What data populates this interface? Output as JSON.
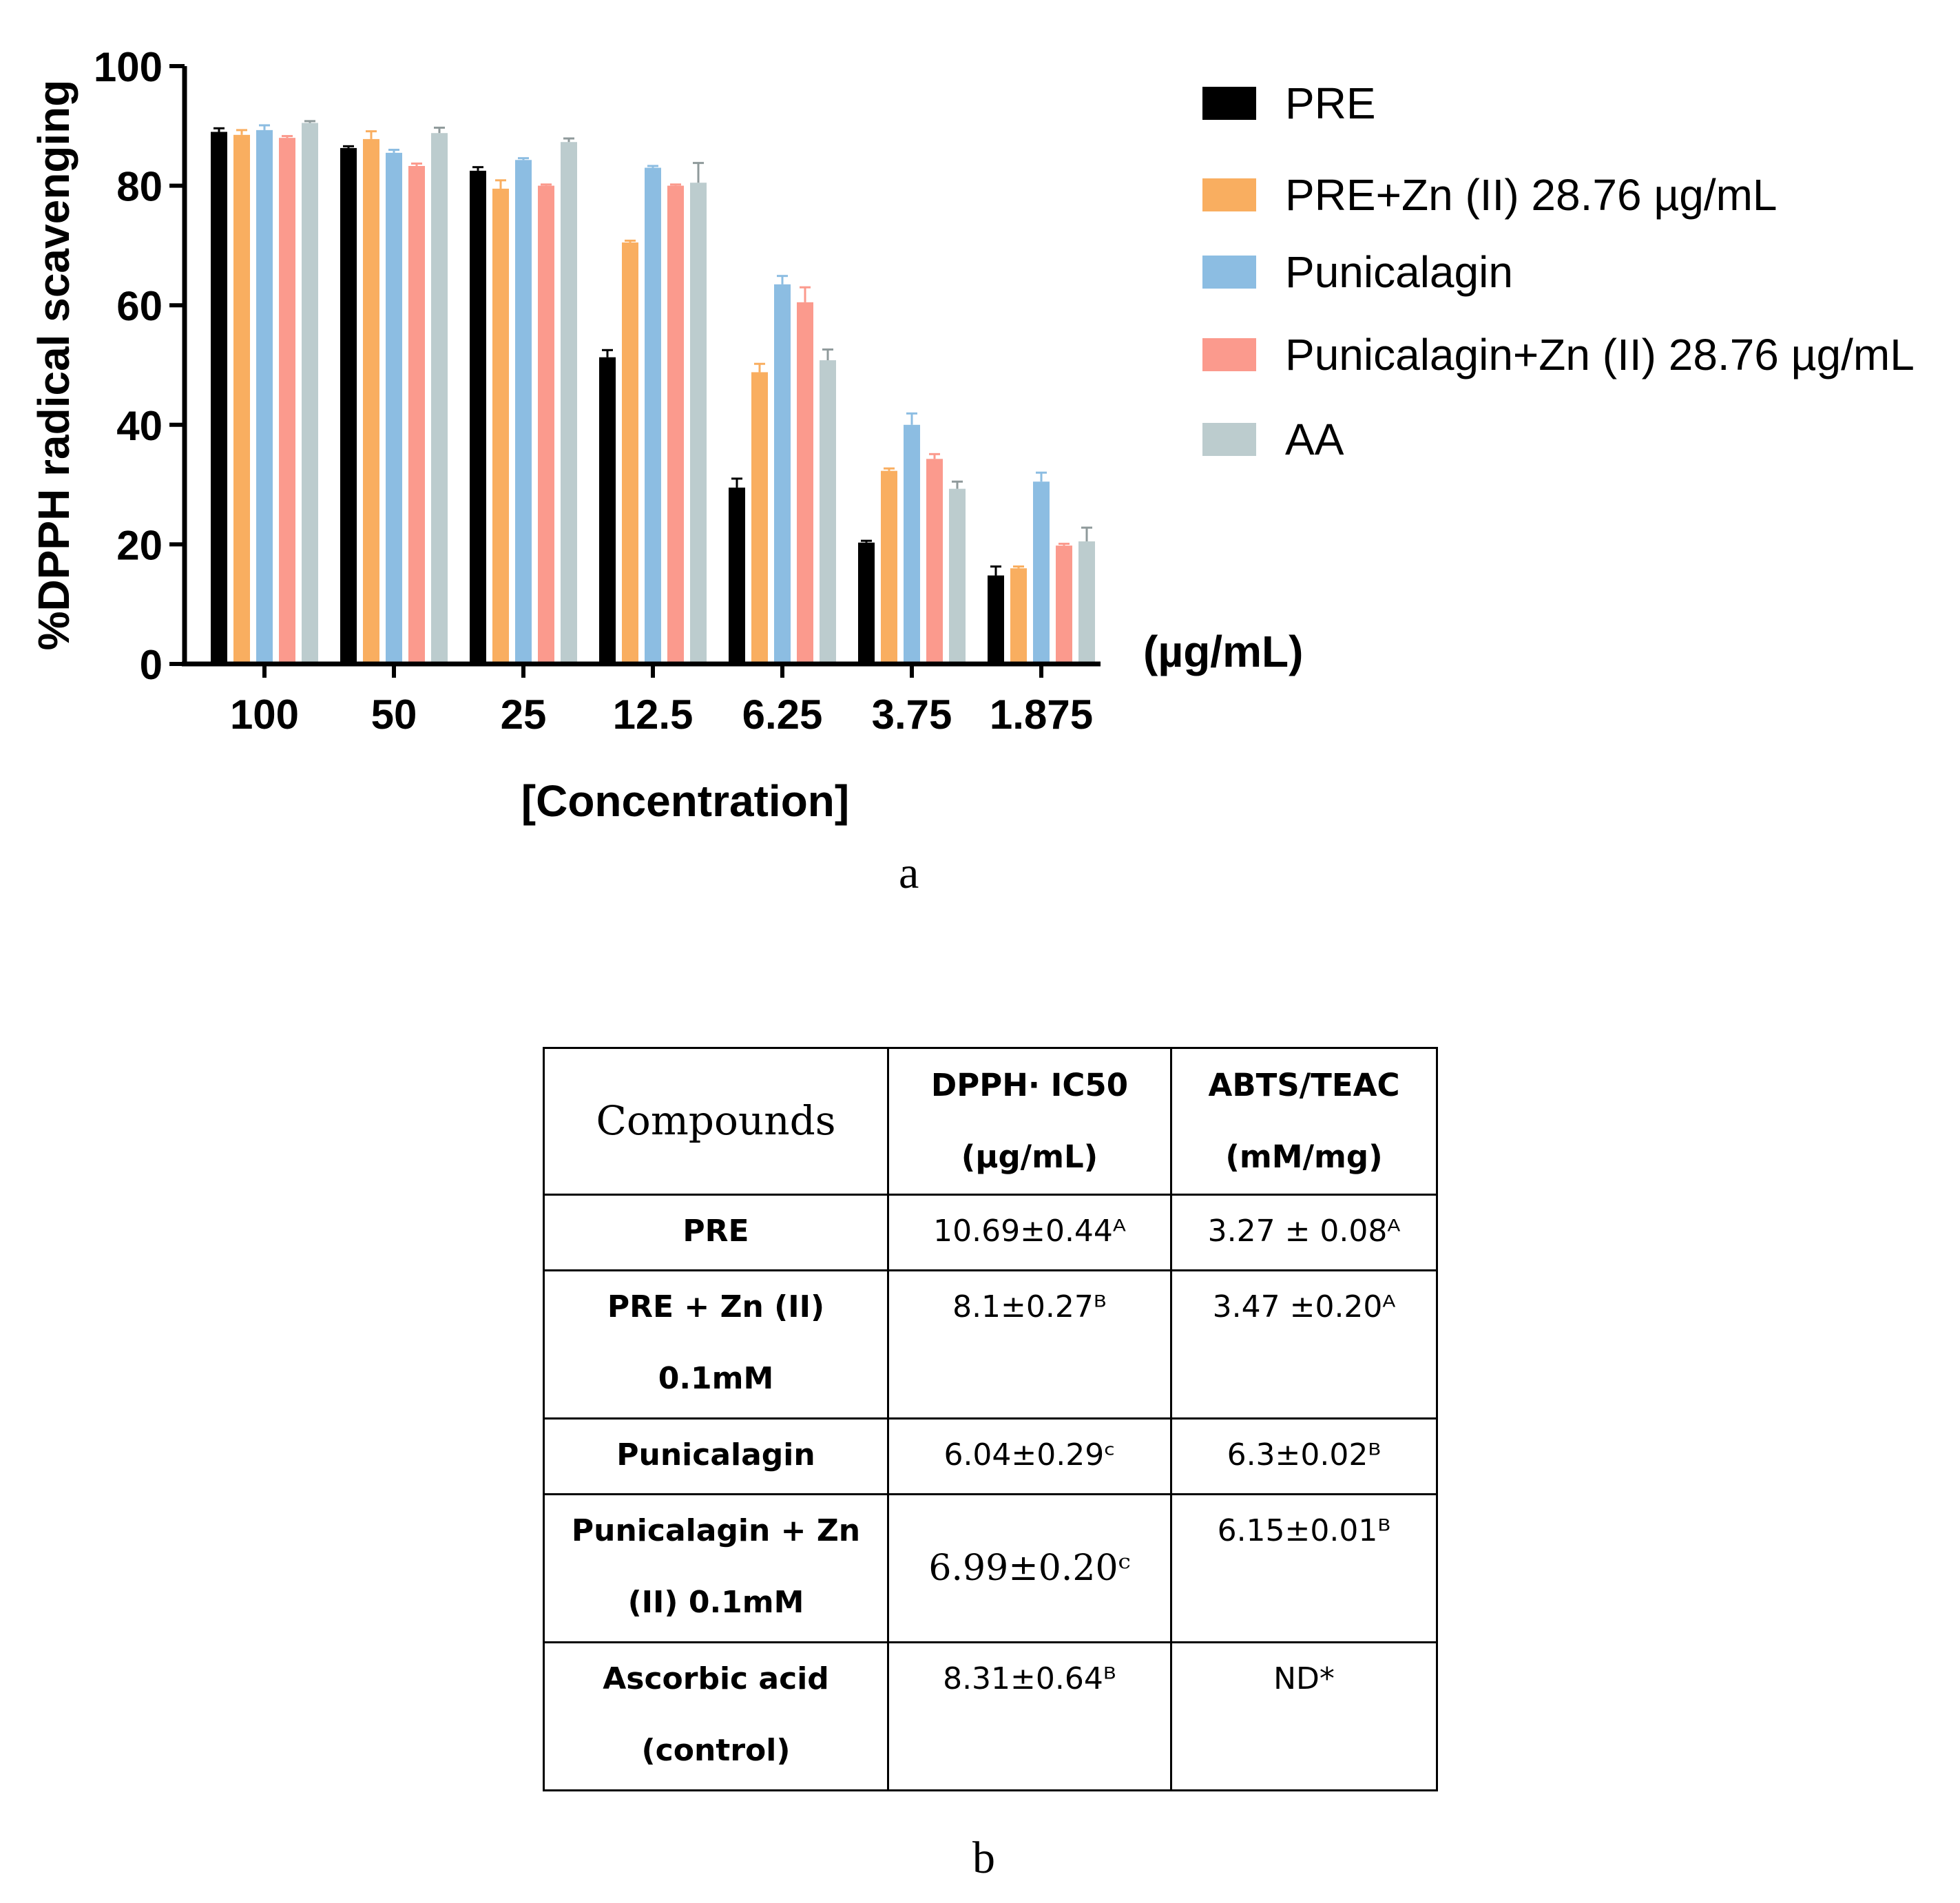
{
  "chart_data": {
    "type": "bar",
    "title": "",
    "ylabel": "%DPPH radical scavenging",
    "xlabel": "[Concentration]",
    "x_unit": "(µg/mL)",
    "ylim": [
      0,
      100
    ],
    "yticks": [
      "0",
      "20",
      "40",
      "60",
      "80",
      "100"
    ],
    "categories": [
      "100",
      "50",
      "25",
      "12.5",
      "6.25",
      "3.75",
      "1.875"
    ],
    "legend_position": "right",
    "series": [
      {
        "name": "PRE",
        "color": "#000000",
        "values": [
          89.0,
          86.3,
          82.5,
          51.3,
          29.5,
          20.3,
          14.8
        ],
        "errors": [
          0.6,
          0.3,
          0.6,
          1.2,
          1.5,
          0.3,
          1.5
        ]
      },
      {
        "name": "PRE+Zn (II) 28.76 µg/mL",
        "color": "#f9ae60",
        "values": [
          88.5,
          87.8,
          79.5,
          70.5,
          48.8,
          32.3,
          16.0
        ],
        "errors": [
          0.8,
          1.3,
          1.4,
          0.3,
          1.4,
          0.4,
          0.3
        ]
      },
      {
        "name": "Punicalagin",
        "color": "#8cbde2",
        "values": [
          89.3,
          85.5,
          84.3,
          83.0,
          63.5,
          40.0,
          30.5
        ],
        "errors": [
          0.8,
          0.5,
          0.3,
          0.3,
          1.4,
          1.9,
          1.5
        ]
      },
      {
        "name": "Punicalagin+Zn (II) 28.76 µg/mL",
        "color": "#fb9a8d",
        "values": [
          88.0,
          83.3,
          80.0,
          80.0,
          60.5,
          34.3,
          19.8
        ],
        "errors": [
          0.3,
          0.4,
          0.2,
          0.2,
          2.5,
          0.8,
          0.3
        ]
      },
      {
        "name": "AA",
        "color": "#bcccce",
        "values": [
          90.5,
          88.8,
          87.3,
          80.5,
          50.8,
          29.3,
          20.5
        ],
        "errors": [
          0.3,
          0.9,
          0.6,
          3.3,
          1.8,
          1.2,
          2.3
        ]
      }
    ]
  },
  "panel_labels": {
    "a": "a",
    "b": "b"
  },
  "table": {
    "header": {
      "compounds": "Compounds",
      "col2": "DPPH· IC50 (µg/mL)",
      "col3": "ABTS/TEAC (mM/mg)"
    },
    "rows": [
      {
        "name": "PRE",
        "ic50": "10.69±0.44ᴬ",
        "teac": "3.27 ± 0.08ᴬ"
      },
      {
        "name": "PRE + Zn (II) 0.1mM",
        "ic50": "8.1±0.27ᴮ",
        "teac": "3.47 ±0.20ᴬ"
      },
      {
        "name": "Punicalagin",
        "ic50": "6.04±0.29ᶜ",
        "teac": "6.3±0.02ᴮ"
      },
      {
        "name": "Punicalagin + Zn (II) 0.1mM",
        "ic50": "6.99±0.20ᶜ",
        "teac": "6.15±0.01ᴮ"
      },
      {
        "name": "Ascorbic acid (control)",
        "ic50": "8.31±0.64ᴮ",
        "teac": "ND*"
      }
    ]
  }
}
